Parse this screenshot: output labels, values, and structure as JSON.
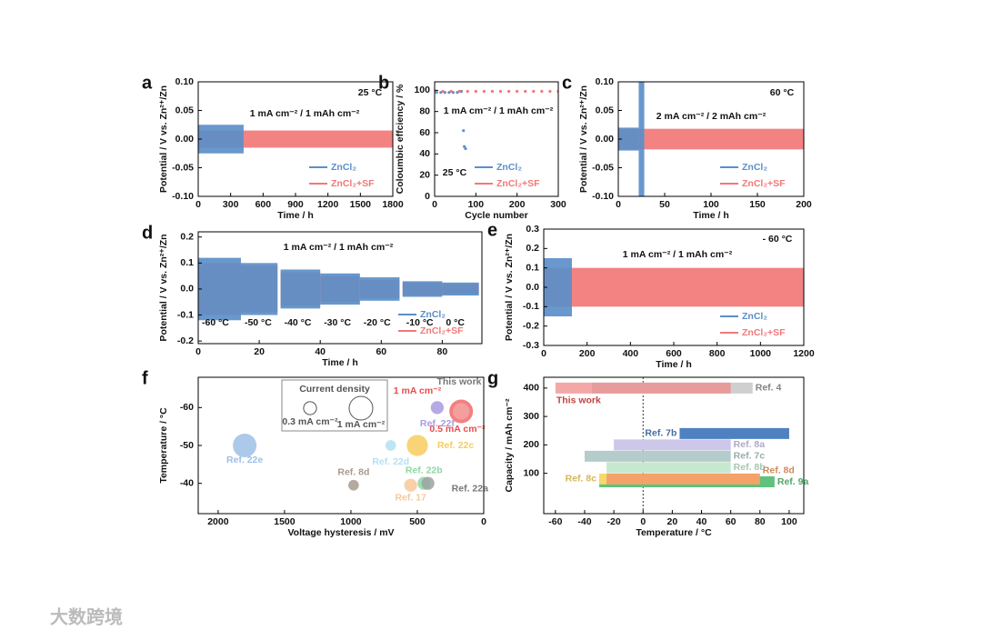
{
  "chart_data": [
    {
      "panel": "a",
      "type": "band",
      "xlabel": "Time / h",
      "ylabel": "Potential / V vs. Zn²⁺/Zn",
      "xlim": [
        0,
        1800
      ],
      "ylim": [
        -0.1,
        0.1
      ],
      "xticks": [
        0,
        300,
        600,
        900,
        1200,
        1500,
        1800
      ],
      "yticks": [
        {
          "value": -0.1,
          "label": "-0.10"
        },
        {
          "value": -0.05,
          "label": "-0.05"
        },
        {
          "value": 0,
          "label": "0.00"
        },
        {
          "value": 0.05,
          "label": "0.05"
        },
        {
          "value": 0.1,
          "label": "0.10"
        }
      ],
      "annotations": [
        "25 °C",
        "1 mA cm⁻² / 1 mAh cm⁻²"
      ],
      "legend": "lower right",
      "series": [
        {
          "name": "ZnCl₂",
          "color": "#5b8fc9",
          "segments": [
            {
              "x": [
                0,
                420
              ],
              "value": 0.025
            }
          ]
        },
        {
          "name": "ZnCl₂+SF",
          "color": "#f27878",
          "segments": [
            {
              "x": [
                0,
                1800
              ],
              "value": 0.015
            }
          ]
        }
      ]
    },
    {
      "panel": "b",
      "type": "scatter",
      "xlabel": "Cycle number",
      "ylabel": "Coloumbic effciency / %",
      "xlim": [
        0,
        300
      ],
      "ylim": [
        0,
        108
      ],
      "xticks": [
        0,
        100,
        200,
        300
      ],
      "yticks": [
        0,
        20,
        40,
        60,
        80,
        100
      ],
      "annotations": [
        "1 mA cm⁻² / 1 mAh cm⁻²",
        "25 °C"
      ],
      "legend": "lower right",
      "series": [
        {
          "name": "ZnCl₂",
          "color": "#5b8fc9",
          "x": [
            5,
            15,
            25,
            35,
            45,
            55,
            65,
            70,
            72,
            75
          ],
          "values": [
            98,
            98,
            98,
            98,
            98,
            98,
            99,
            62,
            47,
            45
          ]
        },
        {
          "name": "ZnCl₂+SF",
          "color": "#f27878",
          "x": [
            0,
            20,
            40,
            60,
            80,
            100,
            120,
            140,
            160,
            180,
            200,
            220,
            240,
            260,
            280,
            300
          ],
          "values": [
            99,
            99,
            99,
            99,
            99,
            99,
            99,
            99,
            99,
            99,
            99,
            99,
            99,
            99,
            99,
            99
          ]
        }
      ]
    },
    {
      "panel": "c",
      "type": "band",
      "xlabel": "Time / h",
      "ylabel": "Potential / V vs. Zn²⁺/Zn",
      "xlim": [
        0,
        200
      ],
      "ylim": [
        -0.1,
        0.1
      ],
      "xticks": [
        0,
        50,
        100,
        150,
        200
      ],
      "yticks": [
        {
          "value": -0.1,
          "label": "-0.10"
        },
        {
          "value": -0.05,
          "label": "-0.05"
        },
        {
          "value": 0,
          "label": "0.00"
        },
        {
          "value": 0.05,
          "label": "0.05"
        },
        {
          "value": 0.1,
          "label": "0.10"
        }
      ],
      "annotations": [
        "60 °C",
        "2 mA cm⁻² / 2 mAh cm⁻²"
      ],
      "legend": "lower right",
      "series": [
        {
          "name": "ZnCl₂",
          "color": "#5b8fc9",
          "segments": [
            {
              "x": [
                0,
                22
              ],
              "value": 0.02
            },
            {
              "x": [
                22,
                28
              ],
              "value": 0.1
            }
          ]
        },
        {
          "name": "ZnCl₂+SF",
          "color": "#f27878",
          "segments": [
            {
              "x": [
                0,
                200
              ],
              "value": 0.018
            }
          ]
        }
      ]
    },
    {
      "panel": "d",
      "type": "band",
      "xlabel": "Time / h",
      "ylabel": "Potential / V vs. Zn²⁺/Zn",
      "xlim": [
        0,
        93
      ],
      "ylim": [
        -0.21,
        0.22
      ],
      "xticks": [
        0,
        20,
        40,
        60,
        80
      ],
      "yticks": [
        -0.2,
        -0.1,
        {
          "value": 0,
          "label": "0.0"
        },
        0.1,
        0.2
      ],
      "annotations": [
        "1 mA cm⁻² / 1 mAh cm⁻²"
      ],
      "legend": "lower right",
      "series": [
        {
          "name": "ZnCl₂",
          "color": "#5b8fc9",
          "segments": [
            {
              "x": [
                0,
                14
              ],
              "value": 0.12,
              "label": "-60 °C"
            },
            {
              "x": [
                14,
                26
              ],
              "value": 0.1,
              "label": "-50 °C"
            },
            {
              "x": [
                27,
                40
              ],
              "value": 0.075,
              "label": "-40 °C"
            },
            {
              "x": [
                40,
                53
              ],
              "value": 0.06,
              "label": "-30 °C"
            },
            {
              "x": [
                53,
                66
              ],
              "value": 0.045,
              "label": "-20 °C"
            },
            {
              "x": [
                67,
                80
              ],
              "value": 0.03,
              "label": "-10 °C"
            },
            {
              "x": [
                80,
                92
              ],
              "value": 0.025,
              "label": "0 °C"
            }
          ]
        },
        {
          "name": "ZnCl₂+SF",
          "color": "#f27878",
          "segments": [
            {
              "x": [
                0,
                14
              ],
              "value": 0.1
            },
            {
              "x": [
                14,
                26
              ],
              "value": 0.09
            },
            {
              "x": [
                27,
                40
              ],
              "value": 0.065
            },
            {
              "x": [
                40,
                53
              ],
              "value": 0.05
            },
            {
              "x": [
                53,
                66
              ],
              "value": 0.035
            },
            {
              "x": [
                67,
                80
              ],
              "value": 0.025
            },
            {
              "x": [
                80,
                92
              ],
              "value": 0.02
            }
          ]
        }
      ]
    },
    {
      "panel": "e",
      "type": "band",
      "xlabel": "Time / h",
      "ylabel": "Potential / V vs. Zn²⁺/Zn",
      "xlim": [
        0,
        1200
      ],
      "ylim": [
        -0.3,
        0.3
      ],
      "xticks": [
        0,
        200,
        400,
        600,
        800,
        1000,
        1200
      ],
      "yticks": [
        -0.3,
        -0.2,
        -0.1,
        {
          "value": 0,
          "label": "0.0"
        },
        0.1,
        0.2,
        0.3
      ],
      "annotations": [
        "1 mA cm⁻² / 1 mAh cm⁻²",
        "- 60 °C"
      ],
      "legend": "lower right",
      "series": [
        {
          "name": "ZnCl₂",
          "color": "#5b8fc9",
          "segments": [
            {
              "x": [
                0,
                130
              ],
              "value": 0.15
            }
          ]
        },
        {
          "name": "ZnCl₂+SF",
          "color": "#f27878",
          "segments": [
            {
              "x": [
                0,
                1200
              ],
              "value": 0.1
            }
          ]
        }
      ]
    },
    {
      "panel": "f",
      "type": "bubble",
      "xlabel": "Voltage hysteresis / mV",
      "ylabel": "Temperature / °C",
      "xlim": [
        2150,
        0
      ],
      "ylim": [
        -32,
        -68
      ],
      "xticks": [
        2000,
        1500,
        1000,
        500,
        0
      ],
      "yticks": [
        -60,
        -50,
        -40
      ],
      "annotations": [
        "1 mA cm⁻²",
        "0.5 mA cm⁻²"
      ],
      "size_legend": {
        "title": "Current density",
        "items": [
          {
            "size": 0.3,
            "label": "0.3 mA cm⁻²"
          },
          {
            "size": 1,
            "label": "1 mA cm⁻²"
          }
        ]
      },
      "points": [
        {
          "name": "This work",
          "x": 170,
          "y": -59,
          "size": 1,
          "color": "#f06a6a"
        },
        {
          "x": 170,
          "y": -59,
          "size": 0.5,
          "color": "#f6a3a3"
        },
        {
          "name": "Ref. 22f",
          "x": 350,
          "y": -60,
          "size": 0.3,
          "color": "#a99be0"
        },
        {
          "name": "Ref. 22e",
          "x": 1800,
          "y": -50,
          "size": 1,
          "color": "#9dbfe6"
        },
        {
          "name": "Ref. 22d",
          "x": 700,
          "y": -50,
          "size": 0.2,
          "color": "#b3e1f2"
        },
        {
          "name": "Ref. 22c",
          "x": 500,
          "y": -50,
          "size": 0.8,
          "color": "#f8cc5e"
        },
        {
          "name": "Ref. 8d",
          "x": 980,
          "y": -39.5,
          "size": 0.2,
          "color": "#a89b8e"
        },
        {
          "name": "Ref. 17",
          "x": 550,
          "y": -39.5,
          "size": 0.3,
          "color": "#f8c89a"
        },
        {
          "name": "Ref. 22b",
          "x": 450,
          "y": -40,
          "size": 0.3,
          "color": "#8fd6a6"
        },
        {
          "name": "Ref. 22a",
          "x": 420,
          "y": -40,
          "size": 0.3,
          "color": "#9aa3a0"
        }
      ]
    },
    {
      "panel": "g",
      "type": "range",
      "xlabel": "Temperature / °C",
      "ylabel": "Capacity / mAh cm⁻²",
      "xlim": [
        -68,
        110
      ],
      "ylim": [
        -42,
        438
      ],
      "xticks": [
        -60,
        -40,
        -20,
        0,
        20,
        40,
        60,
        80,
        100
      ],
      "yticks": [
        100,
        200,
        300,
        400
      ],
      "bars": [
        {
          "name": "Ref. 4",
          "range": [
            -35,
            75
          ],
          "value": 400,
          "color": "#cfcfcf"
        },
        {
          "name": "This work",
          "range": [
            -60,
            60
          ],
          "value": 400,
          "color": "#f08a8a"
        },
        {
          "name": "Ref. 7b",
          "range": [
            25,
            100
          ],
          "value": 240,
          "color": "#4f81c0"
        },
        {
          "name": "Ref. 8a",
          "range": [
            -20,
            60
          ],
          "value": 200,
          "color": "#cdc7ea"
        },
        {
          "name": "Ref. 7c",
          "range": [
            -40,
            60
          ],
          "value": 160,
          "color": "#b4cccb"
        },
        {
          "name": "Ref. 8b",
          "range": [
            -25,
            60
          ],
          "value": 120,
          "color": "#c6e8cf"
        },
        {
          "name": "Ref. 9a",
          "range": [
            -30,
            90
          ],
          "value": 70,
          "color": "#5fc27e"
        },
        {
          "name": "Ref. 8d",
          "range": [
            -25,
            80
          ],
          "value": 80,
          "color": "#f4a268"
        },
        {
          "name": "Ref. 8c",
          "range": [
            -30,
            -25
          ],
          "value": 80,
          "color": "#f8d86a"
        }
      ]
    }
  ],
  "watermark": "大数跨境"
}
